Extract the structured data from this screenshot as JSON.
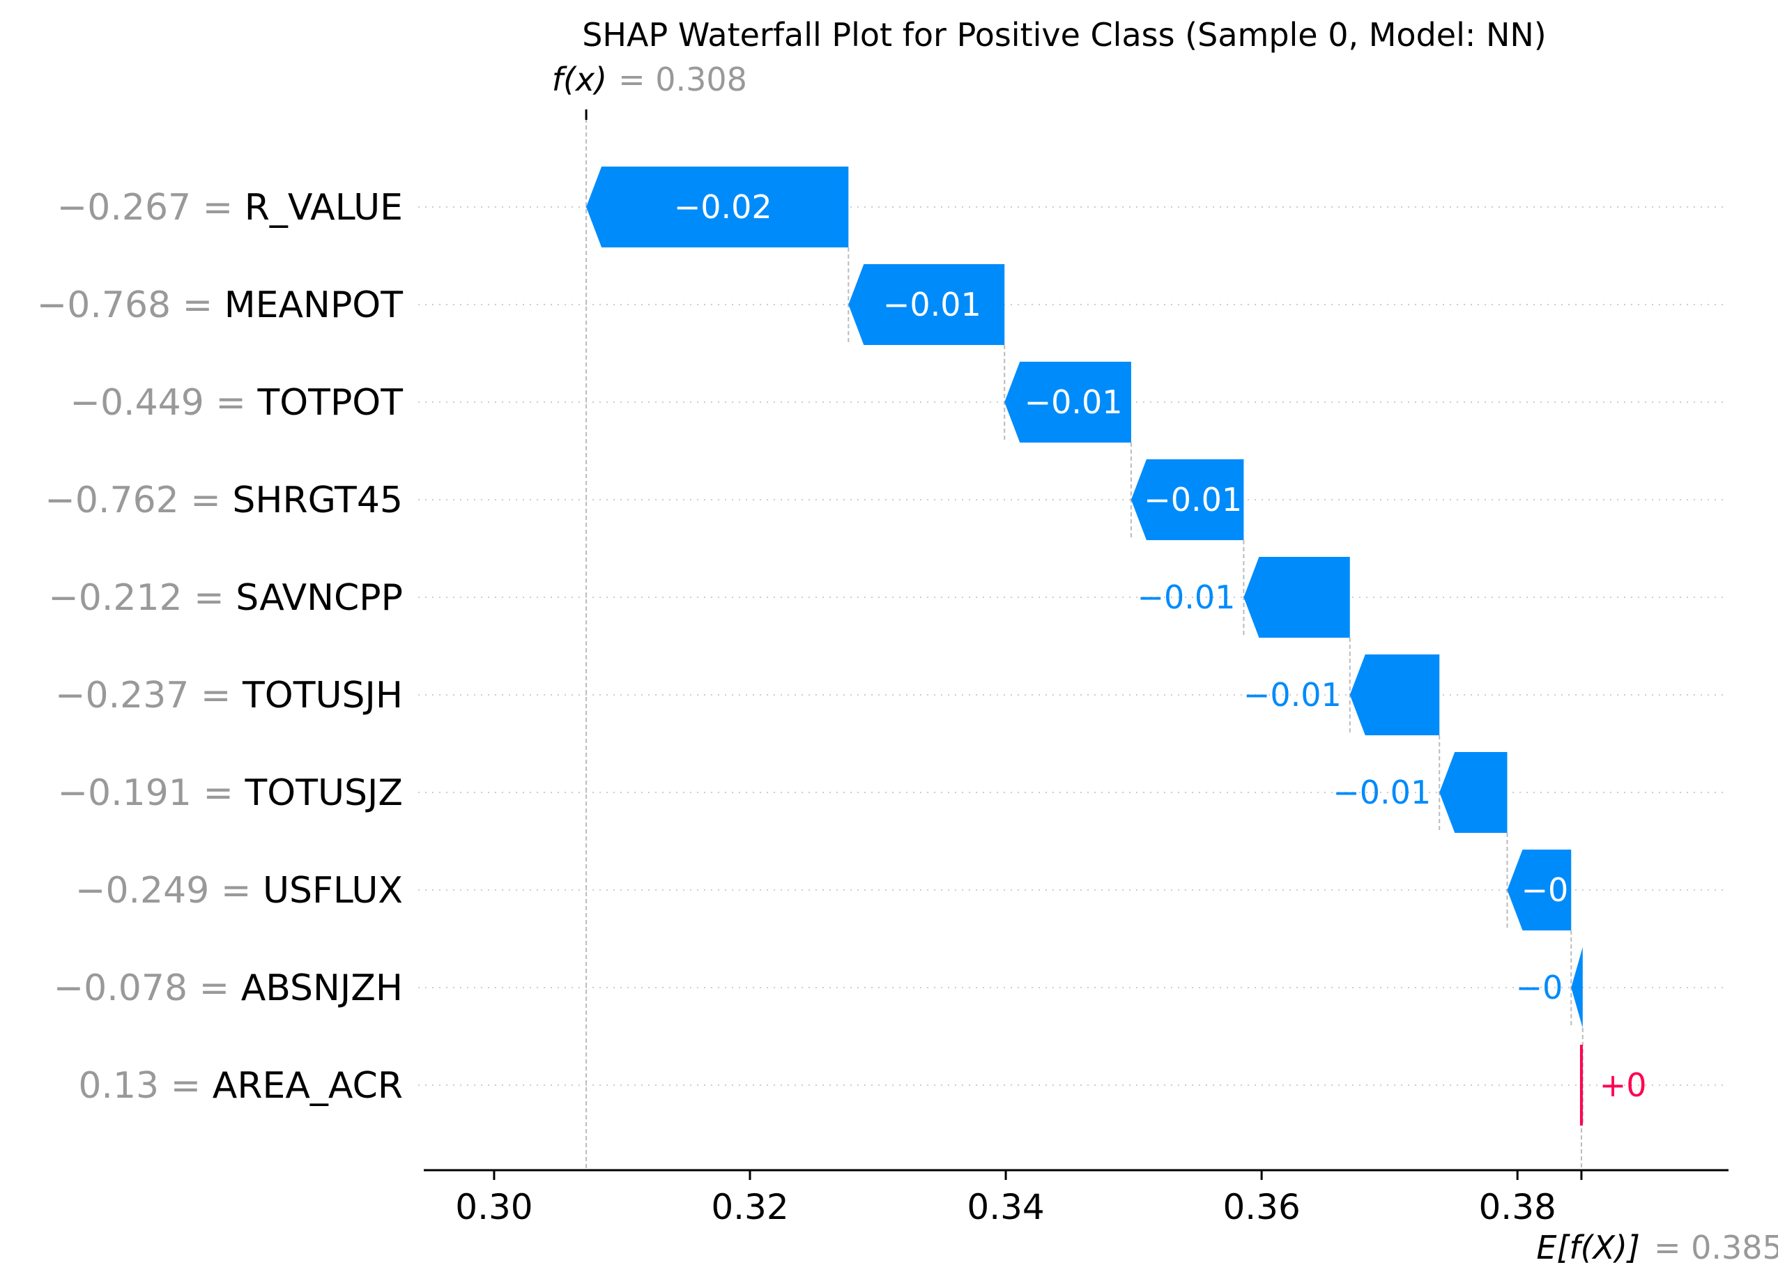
{
  "chart_data": {
    "type": "waterfall",
    "title": "SHAP Waterfall Plot for Positive Class (Sample 0, Model: NN)",
    "fx_label": "f(x)",
    "fx_value": 0.308,
    "fx_value_text": "= 0.308",
    "efx_label": "E[f(X)]",
    "efx_value": 0.385,
    "efx_value_text": "= 0.385",
    "xlim": [
      0.2945,
      0.3965
    ],
    "xticks": [
      0.3,
      0.32,
      0.34,
      0.36,
      0.38
    ],
    "xtick_labels": [
      "0.30",
      "0.32",
      "0.34",
      "0.36",
      "0.38"
    ],
    "grid": "dotted horizontal per feature",
    "colors": {
      "negative": "#008bfb",
      "positive": "#ff0051",
      "value_text": "#999999",
      "grid": "#cccccc"
    },
    "features": [
      {
        "name": "R_VALUE",
        "value_text": "−0.267 =",
        "shap": -0.0205,
        "label": "−0.02",
        "label_inside": true
      },
      {
        "name": "MEANPOT",
        "value_text": "−0.768 =",
        "shap": -0.0122,
        "label": "−0.01",
        "label_inside": true
      },
      {
        "name": "TOTPOT",
        "value_text": "−0.449 =",
        "shap": -0.0099,
        "label": "−0.01",
        "label_inside": true
      },
      {
        "name": "SHRGT45",
        "value_text": "−0.762 =",
        "shap": -0.0088,
        "label": "−0.01",
        "label_inside": true
      },
      {
        "name": "SAVNCPP",
        "value_text": "−0.212 =",
        "shap": -0.0083,
        "label": "−0.01",
        "label_inside": false
      },
      {
        "name": "TOTUSJH",
        "value_text": "−0.237 =",
        "shap": -0.007,
        "label": "−0.01",
        "label_inside": false
      },
      {
        "name": "TOTUSJZ",
        "value_text": "−0.191 =",
        "shap": -0.0053,
        "label": "−0.01",
        "label_inside": false
      },
      {
        "name": "USFLUX",
        "value_text": "−0.249 =",
        "shap": -0.005,
        "label": "−0",
        "label_inside": true
      },
      {
        "name": "ABSNJZH",
        "value_text": "−0.078 =",
        "shap": -0.0009,
        "label": "−0",
        "label_inside": false
      },
      {
        "name": "AREA_ACR",
        "value_text": "0.13 =",
        "shap": 0.0001,
        "label": "+0",
        "label_inside": false
      }
    ]
  }
}
